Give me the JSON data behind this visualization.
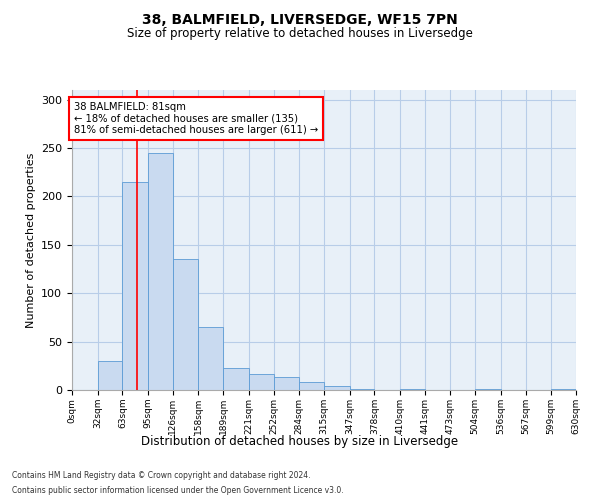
{
  "title1": "38, BALMFIELD, LIVERSEDGE, WF15 7PN",
  "title2": "Size of property relative to detached houses in Liversedge",
  "xlabel": "Distribution of detached houses by size in Liversedge",
  "ylabel": "Number of detached properties",
  "bar_values": [
    0,
    30,
    215,
    245,
    135,
    65,
    23,
    17,
    13,
    8,
    4,
    1,
    0,
    1,
    0,
    0,
    1,
    0,
    0,
    1
  ],
  "bin_edges": [
    0,
    32,
    63,
    95,
    126,
    158,
    189,
    221,
    252,
    284,
    315,
    347,
    378,
    410,
    441,
    473,
    504,
    536,
    567,
    599,
    630
  ],
  "bar_color": "#c9daf0",
  "bar_edge_color": "#5b9bd5",
  "grid_color": "#b8cde8",
  "bg_color": "#e8f0f8",
  "property_size": 81,
  "annotation_text": "38 BALMFIELD: 81sqm\n← 18% of detached houses are smaller (135)\n81% of semi-detached houses are larger (611) →",
  "red_line_x": 81,
  "ylim": [
    0,
    310
  ],
  "yticks": [
    0,
    50,
    100,
    150,
    200,
    250,
    300
  ],
  "footnote1": "Contains HM Land Registry data © Crown copyright and database right 2024.",
  "footnote2": "Contains public sector information licensed under the Open Government Licence v3.0."
}
